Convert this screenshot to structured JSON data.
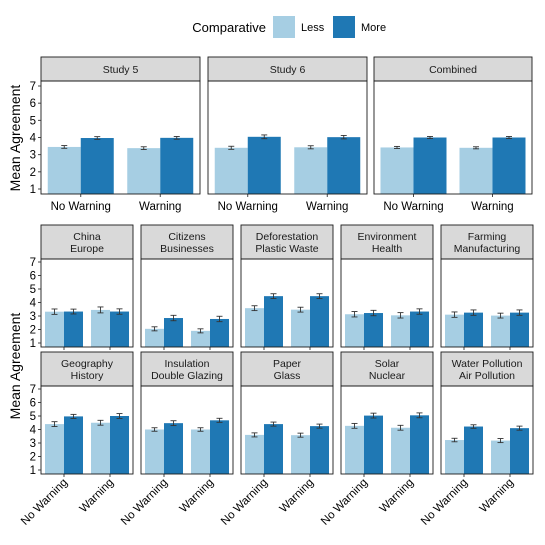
{
  "legend": {
    "title": "Comparative",
    "items": [
      {
        "label": "Less",
        "color": "#a6cee3"
      },
      {
        "label": "More",
        "color": "#1f78b4"
      }
    ]
  },
  "chart_data": {
    "type": "bar",
    "ylabel": "Mean Agreement",
    "ylim": [
      1,
      7
    ],
    "yticks": [
      1,
      2,
      3,
      4,
      5,
      6,
      7
    ],
    "categories": [
      "No Warning",
      "Warning"
    ],
    "series_names": [
      "Less",
      "More"
    ],
    "series_colors": [
      "#a6cee3",
      "#1f78b4"
    ],
    "grid": false,
    "legend_position": "top",
    "panels": [
      {
        "id": "study5",
        "title": [
          "Study 5"
        ],
        "row": 0,
        "col": 0,
        "values": {
          "Less": [
            3.45,
            3.38
          ],
          "More": [
            3.97,
            3.98
          ]
        },
        "errors": {
          "Less": [
            0.08,
            0.08
          ],
          "More": [
            0.08,
            0.08
          ]
        }
      },
      {
        "id": "study6",
        "title": [
          "Study 6"
        ],
        "row": 0,
        "col": 1,
        "values": {
          "Less": [
            3.4,
            3.43
          ],
          "More": [
            4.04,
            4.02
          ]
        },
        "errors": {
          "Less": [
            0.09,
            0.09
          ],
          "More": [
            0.11,
            0.1
          ]
        }
      },
      {
        "id": "combined",
        "title": [
          "Combined"
        ],
        "row": 0,
        "col": 2,
        "values": {
          "Less": [
            3.42,
            3.4
          ],
          "More": [
            4.0,
            4.0
          ]
        },
        "errors": {
          "Less": [
            0.06,
            0.06
          ],
          "More": [
            0.06,
            0.06
          ]
        }
      },
      {
        "id": "china_europe",
        "title": [
          "China",
          "Europe"
        ],
        "row": 1,
        "col": 0,
        "values": {
          "Less": [
            3.32,
            3.45
          ],
          "More": [
            3.33,
            3.33
          ]
        },
        "errors": {
          "Less": [
            0.2,
            0.22
          ],
          "More": [
            0.18,
            0.2
          ]
        }
      },
      {
        "id": "citizens_businesses",
        "title": [
          "Citizens",
          "Businesses"
        ],
        "row": 1,
        "col": 1,
        "values": {
          "Less": [
            2.05,
            1.9
          ],
          "More": [
            2.85,
            2.78
          ]
        },
        "errors": {
          "Less": [
            0.15,
            0.15
          ],
          "More": [
            0.2,
            0.2
          ]
        }
      },
      {
        "id": "deforestation_plastic",
        "title": [
          "Deforestation",
          "Plastic Waste"
        ],
        "row": 1,
        "col": 2,
        "values": {
          "Less": [
            3.58,
            3.47
          ],
          "More": [
            4.47,
            4.47
          ]
        },
        "errors": {
          "Less": [
            0.18,
            0.18
          ],
          "More": [
            0.18,
            0.18
          ]
        }
      },
      {
        "id": "environment_health",
        "title": [
          "Environment",
          "Health"
        ],
        "row": 1,
        "col": 3,
        "values": {
          "Less": [
            3.13,
            3.05
          ],
          "More": [
            3.22,
            3.33
          ]
        },
        "errors": {
          "Less": [
            0.2,
            0.2
          ],
          "More": [
            0.2,
            0.2
          ]
        }
      },
      {
        "id": "farming_manufacturing",
        "title": [
          "Farming",
          "Manufacturing"
        ],
        "row": 1,
        "col": 4,
        "values": {
          "Less": [
            3.1,
            3.03
          ],
          "More": [
            3.25,
            3.25
          ]
        },
        "errors": {
          "Less": [
            0.2,
            0.18
          ],
          "More": [
            0.2,
            0.2
          ]
        }
      },
      {
        "id": "geography_history",
        "title": [
          "Geography",
          "History"
        ],
        "row": 2,
        "col": 0,
        "values": {
          "Less": [
            4.4,
            4.5
          ],
          "More": [
            4.97,
            5.0
          ]
        },
        "errors": {
          "Less": [
            0.18,
            0.18
          ],
          "More": [
            0.15,
            0.18
          ]
        }
      },
      {
        "id": "insulation_glazing",
        "title": [
          "Insulation",
          "Double Glazing"
        ],
        "row": 2,
        "col": 1,
        "values": {
          "Less": [
            4.0,
            4.0
          ],
          "More": [
            4.47,
            4.68
          ]
        },
        "errors": {
          "Less": [
            0.13,
            0.13
          ],
          "More": [
            0.18,
            0.15
          ]
        }
      },
      {
        "id": "paper_glass",
        "title": [
          "Paper",
          "Glass"
        ],
        "row": 2,
        "col": 2,
        "values": {
          "Less": [
            3.6,
            3.58
          ],
          "More": [
            4.4,
            4.25
          ]
        },
        "errors": {
          "Less": [
            0.15,
            0.15
          ],
          "More": [
            0.15,
            0.15
          ]
        }
      },
      {
        "id": "solar_nuclear",
        "title": [
          "Solar",
          "Nuclear"
        ],
        "row": 2,
        "col": 3,
        "values": {
          "Less": [
            4.27,
            4.13
          ],
          "More": [
            5.03,
            5.05
          ]
        },
        "errors": {
          "Less": [
            0.18,
            0.18
          ],
          "More": [
            0.18,
            0.18
          ]
        }
      },
      {
        "id": "water_air_pollution",
        "title": [
          "Water Pollution",
          "Air Pollution"
        ],
        "row": 2,
        "col": 4,
        "values": {
          "Less": [
            3.22,
            3.18
          ],
          "More": [
            4.22,
            4.1
          ]
        },
        "errors": {
          "Less": [
            0.13,
            0.15
          ],
          "More": [
            0.13,
            0.15
          ]
        }
      }
    ]
  }
}
